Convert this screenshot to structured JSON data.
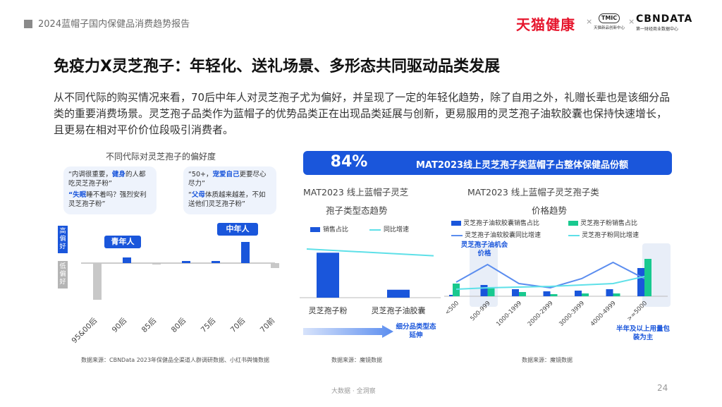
{
  "header": {
    "report_title": "2024蓝帽子国内保健品消费趋势报告",
    "logo_tmall": "天猫健康",
    "logo_sep": "×",
    "logo_tmic": "TMIC",
    "logo_tmic_sub": "天猫新品创新中心",
    "logo_cbn": "CBNDATA",
    "logo_cbn_sub": "第一财经商业数据中心"
  },
  "main": {
    "title": "免疫力X灵芝孢子：年轻化、送礼场景、多形态共同驱动品类发展",
    "intro": "从不同代际的购买情况来看，70后中年人对灵芝孢子尤为偏好，并呈现了一定的年轻化趋势，除了自用之外，礼赠长辈也是该细分品类的重要消费场景。灵芝孢子品类作为蓝帽子的优势品类正在出现品类延展与创新，更易服用的灵芝孢子油软胶囊也保持快速增长，且更易在相对平价价位段吸引消费者。"
  },
  "left_panel": {
    "title": "不同代际对灵芝孢子的偏好度",
    "bubble_left": {
      "line1_a": "“内调很重要，",
      "line1_hl": "健身",
      "line1_b": "的人都吃灵芝孢子粉”",
      "line2_hl": "“失眠",
      "line2_b": "睡不着吗？强烈安利灵芝孢子粉”"
    },
    "bubble_right": {
      "line1_a": "“50+，",
      "line1_hl": "宠爱自己",
      "line1_b": "更要尽心尽力”",
      "line2_a": "“",
      "line2_hl": "父母",
      "line2_b": "体质越来越差，不如送他们灵芝孢子粉”"
    },
    "tag_high": "高偏好",
    "tag_low": "低偏好",
    "pill_young": "青年人",
    "pill_middle": "中年人",
    "source": "数据来源：CBNData 2023年保健品全渠道人群调研数据、小红书舆情数据"
  },
  "banner": {
    "value": "84%",
    "text": "MAT2023线上灵芝孢子类蓝帽子占整体保健品份额"
  },
  "mid_panel": {
    "title_line1": "MAT2023 线上蓝帽子灵芝",
    "title_line2": "孢子类型态趋势",
    "legend_bar": "销售占比",
    "legend_line": "同比增速",
    "arrow_note": "细分品类型态延伸",
    "source": "数据来源：魔镜数据"
  },
  "right_panel": {
    "title_line1": "MAT2023 线上蓝帽子灵芝孢子类",
    "title_line2": "价格趋势",
    "legend": [
      "灵芝孢子油软胶囊销售占比",
      "灵芝孢子粉销售占比",
      "灵芝孢子油软胶囊同比增速",
      "灵芝孢子粉同比增速"
    ],
    "note_top": "灵芝孢子油机会价格",
    "note_bottom": "半年及以上用量包装为主",
    "source": "数据来源：魔镜数据"
  },
  "footer": {
    "center": "大数据 · 全洞察",
    "page": "24"
  },
  "colors": {
    "primary_blue": "#1a56db",
    "teal": "#19c98f",
    "light_blue": "#5b8def",
    "cyan": "#5ee0e8",
    "gray_bar": "#c8c8c8",
    "highlight_bg": "#e8eef8",
    "brand_red": "#e6162d"
  },
  "chart_data": [
    {
      "type": "bar",
      "title": "不同代际对灵芝孢子的偏好度",
      "categories": [
        "95&00后",
        "90后",
        "85后",
        "80后",
        "75后",
        "70后",
        "70前"
      ],
      "values": [
        -52,
        8,
        -2,
        3,
        3,
        30,
        -7
      ],
      "ylim": [
        -60,
        40
      ],
      "grid": false,
      "legend": "none"
    },
    {
      "type": "bar",
      "title": "MAT2023 线上蓝帽子灵芝孢子类型态趋势",
      "categories": [
        "灵芝孢子粉",
        "灵芝孢子油胶囊"
      ],
      "series": [
        {
          "name": "销售占比",
          "type": "bar",
          "values": [
            85,
            15
          ]
        },
        {
          "name": "同比增速",
          "type": "line",
          "values": [
            20,
            12
          ]
        }
      ],
      "ylim": [
        0,
        100
      ],
      "grid": false,
      "legend": "top"
    },
    {
      "type": "bar",
      "title": "MAT2023 线上蓝帽子灵芝孢子类价格趋势",
      "categories": [
        "<500",
        "500-999",
        "1000-1999",
        "2000-2999",
        "3000-3999",
        "4000-4999",
        ">=5000"
      ],
      "series": [
        {
          "name": "灵芝孢子油软胶囊销售占比",
          "type": "bar",
          "values": [
            2,
            16,
            10,
            7,
            8,
            10,
            40
          ]
        },
        {
          "name": "灵芝孢子粉销售占比",
          "type": "bar",
          "values": [
            18,
            12,
            6,
            3,
            4,
            4,
            53
          ]
        },
        {
          "name": "灵芝孢子油软胶囊同比增速",
          "type": "line",
          "values": [
            20,
            45,
            18,
            12,
            25,
            48,
            25
          ]
        },
        {
          "name": "灵芝孢子粉同比增速",
          "type": "line",
          "values": [
            10,
            12,
            13,
            14,
            16,
            18,
            28
          ]
        }
      ],
      "ylim": [
        0,
        60
      ],
      "grid": false,
      "legend": "top"
    }
  ]
}
